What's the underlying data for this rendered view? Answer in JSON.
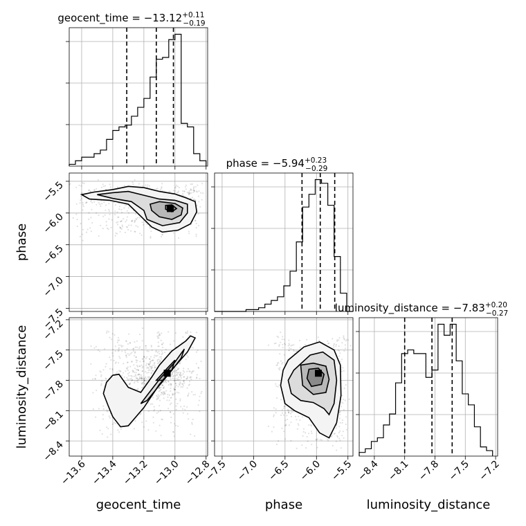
{
  "chart_data": {
    "type": "corner",
    "parameters": [
      "geocent_time",
      "phase",
      "luminosity_distance"
    ],
    "axes": {
      "geocent_time": {
        "xlim": [
          -13.68,
          -12.79
        ],
        "ticks": [
          -13.6,
          -13.4,
          -13.2,
          -13.0,
          -12.8
        ],
        "ticklabels": [
          "−13.6",
          "−13.4",
          "−13.2",
          "−13.0",
          "−12.8"
        ]
      },
      "phase": {
        "xlim": [
          -7.62,
          -5.42
        ],
        "ylim": [
          -7.55,
          -5.37
        ],
        "ticks": [
          -7.5,
          -7.0,
          -6.5,
          -6.0,
          -5.5
        ],
        "ticklabels": [
          "−7.5",
          "−7.0",
          "−6.5",
          "−6.0",
          "−5.5"
        ]
      },
      "luminosity_distance": {
        "xlim": [
          -8.55,
          -7.18
        ],
        "ylim": [
          -8.55,
          -7.18
        ],
        "ticks": [
          -8.4,
          -8.1,
          -7.8,
          -7.5,
          -7.2
        ],
        "ticklabels": [
          "−8.4",
          "−8.1",
          "−7.8",
          "−7.5",
          "−7.2"
        ]
      }
    },
    "xlabels": [
      "geocent_time",
      "phase",
      "luminosity_distance"
    ],
    "ylabels": [
      "",
      "phase",
      "luminosity_distance"
    ],
    "titles": [
      {
        "param": "geocent_time",
        "text": "geocent_time = −13.12",
        "plus": "+0.11",
        "minus": "−0.19"
      },
      {
        "param": "phase",
        "text": "phase = −5.94",
        "plus": "+0.23",
        "minus": "−0.29"
      },
      {
        "param": "luminosity_distance",
        "text": "luminosity_distance = −7.83",
        "plus": "+0.20",
        "minus": "−0.27"
      }
    ],
    "quantiles": {
      "geocent_time": [
        -13.31,
        -13.12,
        -13.01
      ],
      "phase": [
        -6.23,
        -5.94,
        -5.71
      ],
      "luminosity_distance": [
        -8.1,
        -7.83,
        -7.63
      ]
    },
    "histograms": {
      "geocent_time": {
        "bin_edges": [
          -13.68,
          -13.64,
          -13.6,
          -13.56,
          -13.52,
          -13.48,
          -13.44,
          -13.4,
          -13.36,
          -13.32,
          -13.28,
          -13.24,
          -13.2,
          -13.16,
          -13.12,
          -13.08,
          -13.04,
          -13.0,
          -12.96,
          -12.92,
          -12.88,
          -12.84,
          -12.8
        ],
        "counts": [
          1,
          3,
          5,
          5,
          7,
          9,
          15,
          20,
          22,
          23,
          28,
          33,
          38,
          50,
          60,
          61,
          71,
          74,
          24,
          22,
          7,
          3
        ]
      },
      "phase": {
        "bin_edges": [
          -7.62,
          -7.52,
          -7.42,
          -7.32,
          -7.22,
          -7.12,
          -7.02,
          -6.92,
          -6.82,
          -6.72,
          -6.62,
          -6.52,
          -6.42,
          -6.32,
          -6.22,
          -6.12,
          -6.02,
          -5.92,
          -5.82,
          -5.72,
          -5.62,
          -5.52,
          -5.42
        ],
        "counts": [
          0,
          0,
          0,
          0,
          0,
          1,
          1,
          2,
          4,
          6,
          8,
          14,
          22,
          38,
          57,
          64,
          72,
          70,
          58,
          30,
          10,
          0
        ]
      },
      "luminosity_distance": {
        "bin_edges": [
          -8.55,
          -8.49,
          -8.43,
          -8.37,
          -8.31,
          -8.25,
          -8.19,
          -8.13,
          -8.07,
          -8.01,
          -7.95,
          -7.89,
          -7.83,
          -7.77,
          -7.71,
          -7.65,
          -7.59,
          -7.53,
          -7.47,
          -7.41,
          -7.35,
          -7.29,
          -7.23
        ],
        "counts": [
          2,
          4,
          8,
          10,
          17,
          23,
          40,
          56,
          58,
          56,
          56,
          43,
          47,
          72,
          66,
          72,
          52,
          34,
          28,
          16,
          5,
          3
        ]
      }
    },
    "contours_2d": {
      "phase_vs_geocent_time": {
        "x": "geocent_time",
        "y": "phase",
        "levels": [
          [
            [
              -13.6,
              -5.71
            ],
            [
              -13.52,
              -5.67
            ],
            [
              -13.4,
              -5.63
            ],
            [
              -13.3,
              -5.58
            ],
            [
              -13.2,
              -5.6
            ],
            [
              -13.1,
              -5.66
            ],
            [
              -13.0,
              -5.7
            ],
            [
              -12.93,
              -5.76
            ],
            [
              -12.87,
              -5.82
            ],
            [
              -12.86,
              -5.98
            ],
            [
              -12.9,
              -6.17
            ],
            [
              -12.98,
              -6.27
            ],
            [
              -13.08,
              -6.3
            ],
            [
              -13.15,
              -6.22
            ],
            [
              -13.22,
              -6.05
            ],
            [
              -13.3,
              -5.86
            ],
            [
              -13.42,
              -5.8
            ],
            [
              -13.55,
              -5.78
            ],
            [
              -13.6,
              -5.71
            ]
          ],
          [
            [
              -13.5,
              -5.71
            ],
            [
              -13.4,
              -5.68
            ],
            [
              -13.3,
              -5.66
            ],
            [
              -13.2,
              -5.72
            ],
            [
              -13.1,
              -5.78
            ],
            [
              -13.0,
              -5.8
            ],
            [
              -12.92,
              -5.86
            ],
            [
              -12.92,
              -6.0
            ],
            [
              -12.97,
              -6.15
            ],
            [
              -13.08,
              -6.2
            ],
            [
              -13.18,
              -6.1
            ],
            [
              -13.2,
              -5.96
            ],
            [
              -13.28,
              -5.82
            ],
            [
              -13.4,
              -5.77
            ],
            [
              -13.5,
              -5.71
            ]
          ],
          [
            [
              -13.16,
              -5.86
            ],
            [
              -13.1,
              -5.82
            ],
            [
              -13.0,
              -5.85
            ],
            [
              -12.95,
              -5.92
            ],
            [
              -12.96,
              -6.03
            ],
            [
              -13.02,
              -6.1
            ],
            [
              -13.1,
              -6.06
            ],
            [
              -13.15,
              -5.96
            ],
            [
              -13.16,
              -5.86
            ]
          ],
          [
            [
              -13.06,
              -5.88
            ],
            [
              -13.02,
              -5.87
            ],
            [
              -12.99,
              -5.93
            ],
            [
              -13.02,
              -5.98
            ],
            [
              -13.06,
              -5.94
            ],
            [
              -13.06,
              -5.88
            ]
          ]
        ],
        "peak": [
          -13.03,
          -5.93
        ]
      },
      "luminosity_distance_vs_geocent_time": {
        "x": "geocent_time",
        "y": "luminosity_distance",
        "levels": [
          [
            [
              -13.4,
              -7.75
            ],
            [
              -13.36,
              -7.74
            ],
            [
              -13.3,
              -7.87
            ],
            [
              -13.22,
              -7.92
            ],
            [
              -13.15,
              -7.77
            ],
            [
              -13.1,
              -7.65
            ],
            [
              -13.02,
              -7.51
            ],
            [
              -12.93,
              -7.41
            ],
            [
              -12.9,
              -7.36
            ],
            [
              -12.87,
              -7.38
            ],
            [
              -12.92,
              -7.52
            ],
            [
              -13.0,
              -7.66
            ],
            [
              -13.1,
              -7.84
            ],
            [
              -13.2,
              -8.07
            ],
            [
              -13.3,
              -8.25
            ],
            [
              -13.35,
              -8.26
            ],
            [
              -13.4,
              -8.16
            ],
            [
              -13.43,
              -8.05
            ],
            [
              -13.46,
              -7.93
            ],
            [
              -13.44,
              -7.82
            ],
            [
              -13.4,
              -7.75
            ]
          ],
          [
            [
              -13.22,
              -8.03
            ],
            [
              -13.17,
              -7.93
            ],
            [
              -13.1,
              -7.79
            ],
            [
              -13.0,
              -7.62
            ],
            [
              -12.94,
              -7.49
            ],
            [
              -12.96,
              -7.58
            ],
            [
              -13.02,
              -7.7
            ],
            [
              -13.1,
              -7.85
            ],
            [
              -13.18,
              -8.0
            ],
            [
              -13.22,
              -8.03
            ]
          ],
          [
            [
              -13.12,
              -7.8
            ],
            [
              -13.05,
              -7.68
            ],
            [
              -13.0,
              -7.6
            ],
            [
              -13.02,
              -7.7
            ],
            [
              -13.08,
              -7.8
            ],
            [
              -13.12,
              -7.8
            ]
          ]
        ],
        "peak": [
          -13.05,
          -7.73
        ]
      },
      "luminosity_distance_vs_phase": {
        "x": "phase",
        "y": "luminosity_distance",
        "levels": [
          [
            [
              -6.45,
              -7.6
            ],
            [
              -6.2,
              -7.47
            ],
            [
              -5.95,
              -7.42
            ],
            [
              -5.72,
              -7.5
            ],
            [
              -5.62,
              -7.65
            ],
            [
              -5.61,
              -7.95
            ],
            [
              -5.68,
              -8.22
            ],
            [
              -5.8,
              -8.37
            ],
            [
              -5.95,
              -8.32
            ],
            [
              -6.12,
              -8.17
            ],
            [
              -6.35,
              -8.1
            ],
            [
              -6.5,
              -8.03
            ],
            [
              -6.57,
              -7.85
            ],
            [
              -6.53,
              -7.7
            ],
            [
              -6.45,
              -7.6
            ]
          ],
          [
            [
              -6.36,
              -7.7
            ],
            [
              -6.1,
              -7.55
            ],
            [
              -5.9,
              -7.52
            ],
            [
              -5.72,
              -7.6
            ],
            [
              -5.68,
              -7.8
            ],
            [
              -5.72,
              -8.03
            ],
            [
              -5.8,
              -8.14
            ],
            [
              -5.88,
              -8.08
            ],
            [
              -6.05,
              -8.02
            ],
            [
              -6.25,
              -8.0
            ],
            [
              -6.4,
              -7.93
            ],
            [
              -6.45,
              -7.8
            ],
            [
              -6.36,
              -7.7
            ]
          ],
          [
            [
              -6.25,
              -7.65
            ],
            [
              -6.05,
              -7.63
            ],
            [
              -5.85,
              -7.66
            ],
            [
              -5.8,
              -7.79
            ],
            [
              -5.85,
              -7.92
            ],
            [
              -6.05,
              -7.94
            ],
            [
              -6.22,
              -7.85
            ],
            [
              -6.25,
              -7.65
            ]
          ],
          [
            [
              -6.12,
              -7.69
            ],
            [
              -5.97,
              -7.68
            ],
            [
              -5.88,
              -7.74
            ],
            [
              -5.92,
              -7.84
            ],
            [
              -6.08,
              -7.86
            ],
            [
              -6.15,
              -7.78
            ],
            [
              -6.12,
              -7.69
            ]
          ]
        ],
        "peak": [
          -5.97,
          -7.73
        ]
      }
    }
  }
}
